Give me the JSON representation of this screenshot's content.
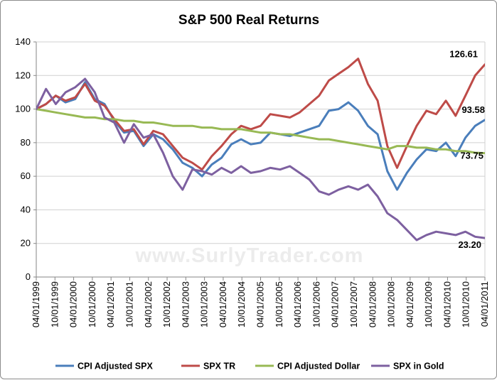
{
  "chart_data": {
    "type": "line",
    "title": "S&P 500 Real Returns",
    "watermark": "www.SurlyTrader.com",
    "ylim": [
      0,
      140
    ],
    "yticks": [
      0,
      20,
      40,
      60,
      80,
      100,
      120,
      140
    ],
    "xticks": [
      "04/01/1999",
      "10/01/1999",
      "04/01/2000",
      "10/01/2000",
      "04/01/2001",
      "10/01/2001",
      "04/01/2002",
      "10/01/2002",
      "04/01/2003",
      "10/01/2003",
      "04/01/2004",
      "10/01/2004",
      "04/01/2005",
      "10/01/2005",
      "04/01/2006",
      "10/01/2006",
      "04/01/2007",
      "10/01/2007",
      "04/01/2008",
      "10/01/2008",
      "04/01/2009",
      "10/01/2009",
      "04/01/2010",
      "10/01/2010",
      "04/01/2011"
    ],
    "x_start": "1999-04",
    "x_step": "quarter",
    "series": [
      {
        "name": "CPI Adjusted SPX",
        "color": "#4a7ebb",
        "end_label": "93.58",
        "values": [
          100,
          103,
          108,
          104,
          106,
          116,
          106,
          103,
          93,
          86,
          87,
          78,
          85,
          82,
          76,
          68,
          65,
          60,
          67,
          71,
          79,
          82,
          79,
          80,
          86,
          85,
          84,
          86,
          88,
          90,
          99,
          100,
          104,
          99,
          90,
          85,
          63,
          52,
          62,
          70,
          76,
          75,
          80,
          72,
          83,
          90,
          93.58
        ]
      },
      {
        "name": "SPX TR",
        "color": "#be4b48",
        "end_label": "126.61",
        "values": [
          100,
          103,
          108,
          105,
          107,
          115,
          105,
          102,
          94,
          87,
          88,
          79,
          87,
          85,
          78,
          71,
          68,
          64,
          72,
          78,
          85,
          90,
          88,
          90,
          97,
          96,
          95,
          98,
          103,
          108,
          117,
          121,
          125,
          130,
          115,
          105,
          78,
          65,
          78,
          90,
          99,
          97,
          105,
          96,
          108,
          120,
          126.61
        ]
      },
      {
        "name": "CPI Adjusted Dollar",
        "color": "#98b954",
        "end_label": "73.75",
        "values": [
          100,
          99,
          98,
          97,
          96,
          95,
          95,
          94,
          94,
          93,
          93,
          92,
          92,
          91,
          90,
          90,
          90,
          89,
          89,
          88,
          88,
          88,
          87,
          86,
          86,
          85,
          85,
          84,
          83,
          82,
          82,
          81,
          80,
          79,
          78,
          77,
          76,
          78,
          78,
          77,
          77,
          76,
          76,
          75,
          75,
          74,
          73.75
        ]
      },
      {
        "name": "SPX in Gold",
        "color": "#7d60a0",
        "end_label": "23.20",
        "values": [
          100,
          112,
          103,
          110,
          113,
          118,
          110,
          95,
          92,
          80,
          91,
          83,
          85,
          74,
          60,
          52,
          64,
          63,
          61,
          65,
          62,
          66,
          62,
          63,
          65,
          64,
          66,
          62,
          58,
          51,
          49,
          52,
          54,
          52,
          55,
          48,
          38,
          34,
          28,
          22,
          25,
          27,
          26,
          25,
          27,
          24,
          23.2
        ]
      }
    ]
  }
}
